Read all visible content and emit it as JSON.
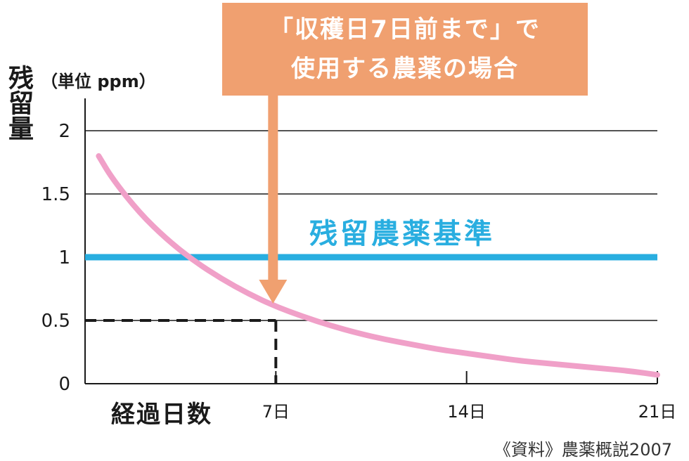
{
  "chart_data": {
    "type": "line",
    "x_axis": {
      "label": "経過日数",
      "range": [
        0,
        21
      ],
      "ticks": [
        {
          "value": 7,
          "label": "7日"
        },
        {
          "value": 14,
          "label": "14日"
        },
        {
          "value": 21,
          "label": "21日"
        }
      ]
    },
    "y_axis": {
      "label": "残留量",
      "unit": "（単位 ppm）",
      "range": [
        0,
        2
      ],
      "ticks": [
        {
          "value": 0,
          "label": "0"
        },
        {
          "value": 0.5,
          "label": "0.5"
        },
        {
          "value": 1,
          "label": "1"
        },
        {
          "value": 1.5,
          "label": "1.5"
        },
        {
          "value": 2,
          "label": "2"
        }
      ]
    },
    "grid": true,
    "series": [
      {
        "color": "#f0a0c8",
        "x": [
          0.5,
          1,
          2,
          3,
          4,
          5,
          6,
          7,
          8,
          9,
          10,
          11,
          12,
          13,
          14,
          15,
          16,
          17,
          18,
          19,
          20,
          21
        ],
        "y": [
          1.8,
          1.62,
          1.35,
          1.14,
          0.97,
          0.83,
          0.71,
          0.61,
          0.53,
          0.46,
          0.4,
          0.35,
          0.31,
          0.27,
          0.24,
          0.21,
          0.18,
          0.16,
          0.14,
          0.12,
          0.1,
          0.07
        ]
      }
    ],
    "reference_line": {
      "value": 1,
      "label": "残留農薬基準",
      "color": "#29aee0"
    },
    "marker": {
      "x": 7,
      "y": 0.5,
      "style": "dashed"
    },
    "annotation": {
      "text_line1": "「収穫日7日前まで」で",
      "text_line2": "使用する農薬の場合",
      "color": "#f0a070",
      "arrow_to_x": 7
    },
    "source": "《資料》農薬概説2007"
  }
}
